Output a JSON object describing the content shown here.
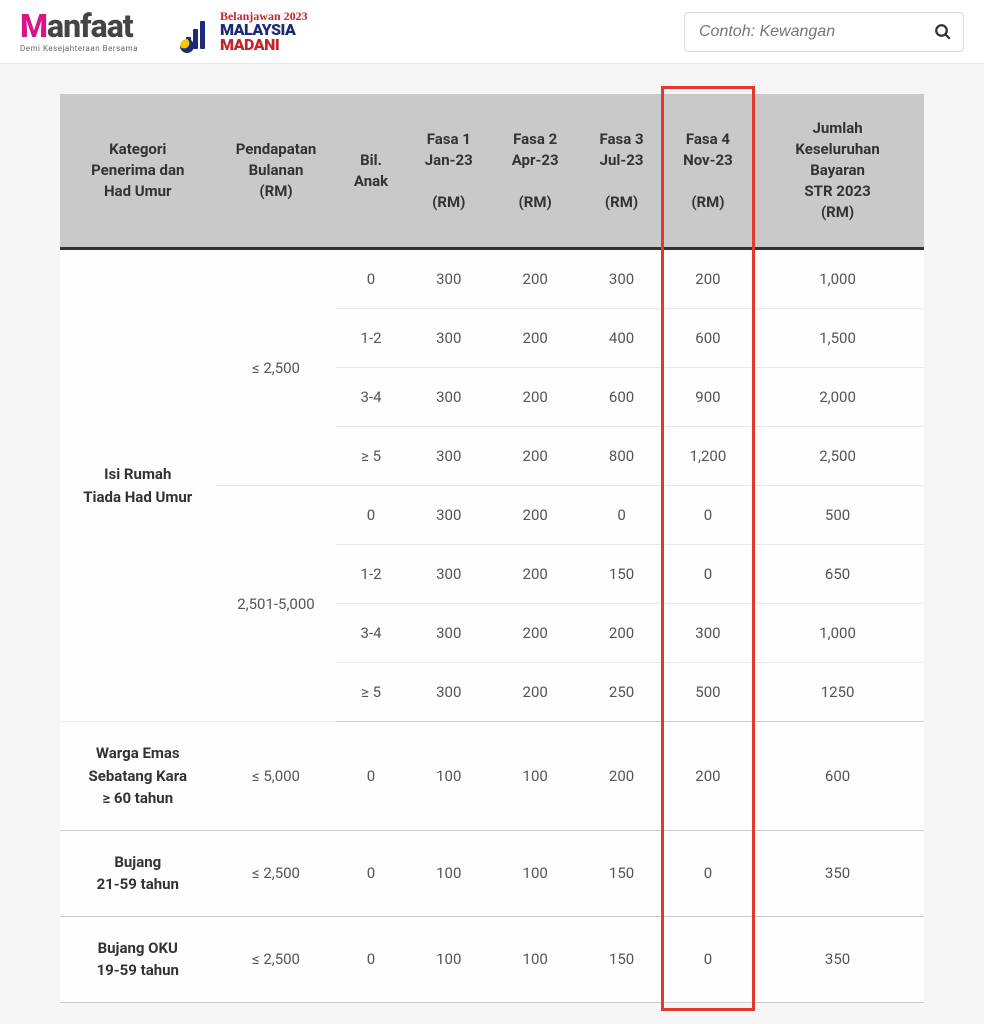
{
  "header": {
    "manfaat": {
      "m": "M",
      "rest": "anfaat",
      "tagline": "Demi Kesejahteraan Bersama"
    },
    "madani": {
      "script": "Belanjawan 2023",
      "line1": "MALAYSIA",
      "line2": "MADANI"
    },
    "search": {
      "placeholder": "Contoh: Kewangan"
    }
  },
  "table": {
    "columns": [
      "Kategori Penerima dan Had Umur",
      "Pendapatan Bulanan (RM)",
      "Bil. Anak",
      "Fasa 1 Jan-23 (RM)",
      "Fasa 2 Apr-23 (RM)",
      "Fasa 3 Jul-23 (RM)",
      "Fasa 4 Nov-23 (RM)",
      "Jumlah Keseluruhan Bayaran STR 2023 (RM)"
    ],
    "groups": [
      {
        "category": "Isi Rumah Tiada Had Umur",
        "incomes": [
          {
            "income": "≤ 2,500",
            "rows": [
              {
                "anak": "0",
                "f1": "300",
                "f2": "200",
                "f3": "300",
                "f4": "200",
                "total": "1,000"
              },
              {
                "anak": "1-2",
                "f1": "300",
                "f2": "200",
                "f3": "400",
                "f4": "600",
                "total": "1,500"
              },
              {
                "anak": "3-4",
                "f1": "300",
                "f2": "200",
                "f3": "600",
                "f4": "900",
                "total": "2,000"
              },
              {
                "anak": "≥ 5",
                "f1": "300",
                "f2": "200",
                "f3": "800",
                "f4": "1,200",
                "total": "2,500"
              }
            ]
          },
          {
            "income": "2,501-5,000",
            "rows": [
              {
                "anak": "0",
                "f1": "300",
                "f2": "200",
                "f3": "0",
                "f4": "0",
                "total": "500"
              },
              {
                "anak": "1-2",
                "f1": "300",
                "f2": "200",
                "f3": "150",
                "f4": "0",
                "total": "650"
              },
              {
                "anak": "3-4",
                "f1": "300",
                "f2": "200",
                "f3": "200",
                "f4": "300",
                "total": "1,000"
              },
              {
                "anak": "≥ 5",
                "f1": "300",
                "f2": "200",
                "f3": "250",
                "f4": "500",
                "total": "1250"
              }
            ]
          }
        ]
      },
      {
        "category": "Warga Emas Sebatang Kara ≥ 60 tahun",
        "incomes": [
          {
            "income": "≤ 5,000",
            "rows": [
              {
                "anak": "0",
                "f1": "100",
                "f2": "100",
                "f3": "200",
                "f4": "200",
                "total": "600"
              }
            ]
          }
        ]
      },
      {
        "category": "Bujang 21-59 tahun",
        "incomes": [
          {
            "income": "≤ 2,500",
            "rows": [
              {
                "anak": "0",
                "f1": "100",
                "f2": "100",
                "f3": "150",
                "f4": "0",
                "total": "350"
              }
            ]
          }
        ]
      },
      {
        "category": "Bujang OKU 19-59 tahun",
        "incomes": [
          {
            "income": "≤ 2,500",
            "rows": [
              {
                "anak": "0",
                "f1": "100",
                "f2": "100",
                "f3": "150",
                "f4": "0",
                "total": "350"
              }
            ]
          }
        ]
      }
    ],
    "highlight_column_index": 6,
    "styling": {
      "header_bg": "#c9c9c9",
      "header_text": "#333333",
      "row_bg": "#fefefe",
      "border_color": "#e8e8e8",
      "group_border_color": "#cccccc",
      "header_underline": "#333333",
      "highlight_border_color": "#e03a2f",
      "font_size_header": 15,
      "font_size_cell": 15,
      "category_font_weight": 700
    },
    "column_widths_pct": [
      18,
      14,
      8,
      10,
      10,
      10,
      10,
      20
    ]
  }
}
